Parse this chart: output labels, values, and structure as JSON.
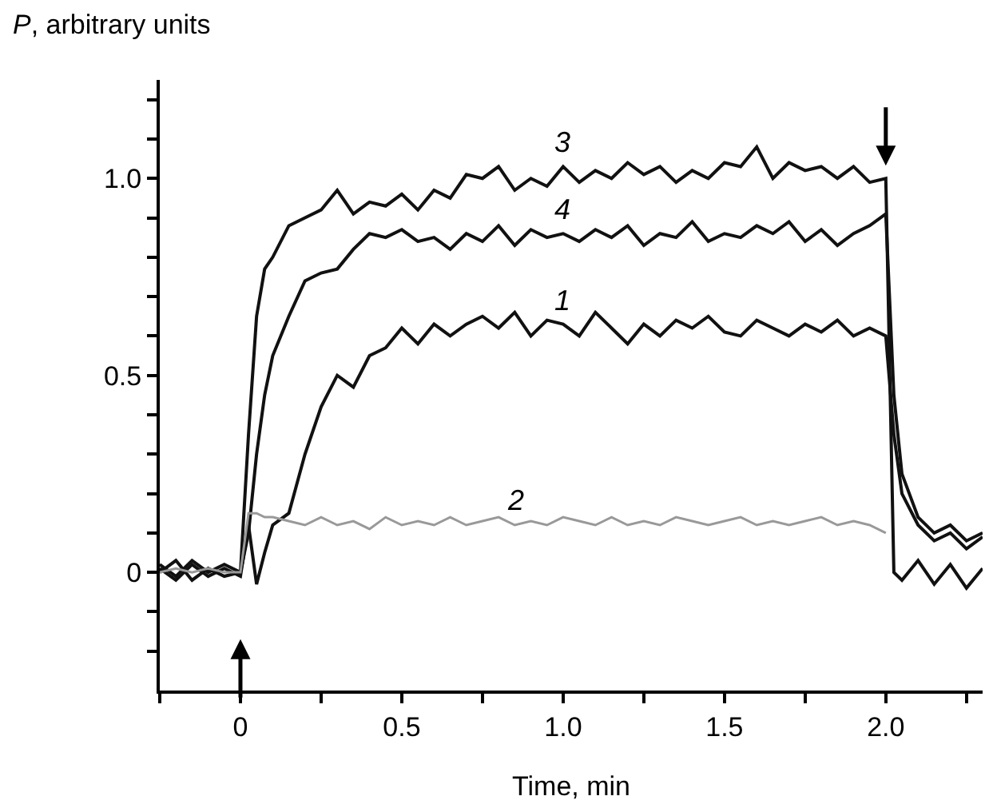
{
  "chart_data": {
    "type": "line",
    "xlabel": "Time, min",
    "ylabel": "P, arbitrary units",
    "x": [
      -0.25,
      -0.2,
      -0.15,
      -0.1,
      -0.05,
      0,
      0.025,
      0.05,
      0.075,
      0.1,
      0.15,
      0.2,
      0.25,
      0.3,
      0.35,
      0.4,
      0.45,
      0.5,
      0.55,
      0.6,
      0.65,
      0.7,
      0.75,
      0.8,
      0.85,
      0.9,
      0.95,
      1.0,
      1.05,
      1.1,
      1.15,
      1.2,
      1.25,
      1.3,
      1.35,
      1.4,
      1.45,
      1.5,
      1.55,
      1.6,
      1.65,
      1.7,
      1.75,
      1.8,
      1.85,
      1.9,
      1.95,
      2.0,
      2.025,
      2.05,
      2.1,
      2.15,
      2.2,
      2.25,
      2.3
    ],
    "series": [
      {
        "name": "3",
        "color": "#111111",
        "values": [
          0.02,
          -0.01,
          0.03,
          0.0,
          0.02,
          0.0,
          0.35,
          0.65,
          0.77,
          0.8,
          0.88,
          0.9,
          0.92,
          0.97,
          0.91,
          0.94,
          0.93,
          0.96,
          0.92,
          0.97,
          0.95,
          1.01,
          1.0,
          1.03,
          0.97,
          1.0,
          0.98,
          1.03,
          0.99,
          1.02,
          1.0,
          1.04,
          1.01,
          1.03,
          0.99,
          1.02,
          1.0,
          1.04,
          1.03,
          1.08,
          1.0,
          1.04,
          1.02,
          1.03,
          1.0,
          1.03,
          0.99,
          1.0,
          0.0,
          -0.02,
          0.03,
          -0.03,
          0.02,
          -0.04,
          0.01
        ]
      },
      {
        "name": "4",
        "color": "#111111",
        "values": [
          0.0,
          0.03,
          -0.02,
          0.01,
          -0.01,
          0.0,
          0.1,
          0.3,
          0.45,
          0.55,
          0.65,
          0.74,
          0.76,
          0.77,
          0.82,
          0.86,
          0.85,
          0.87,
          0.84,
          0.85,
          0.82,
          0.86,
          0.84,
          0.88,
          0.83,
          0.87,
          0.85,
          0.86,
          0.84,
          0.87,
          0.85,
          0.88,
          0.83,
          0.86,
          0.85,
          0.89,
          0.84,
          0.86,
          0.85,
          0.88,
          0.86,
          0.89,
          0.84,
          0.87,
          0.83,
          0.86,
          0.88,
          0.91,
          0.45,
          0.25,
          0.14,
          0.1,
          0.12,
          0.08,
          0.1
        ]
      },
      {
        "name": "1",
        "color": "#111111",
        "values": [
          0.01,
          -0.02,
          0.02,
          -0.01,
          0.01,
          -0.01,
          0.12,
          -0.03,
          0.05,
          0.12,
          0.15,
          0.3,
          0.42,
          0.5,
          0.47,
          0.55,
          0.57,
          0.62,
          0.58,
          0.63,
          0.6,
          0.63,
          0.65,
          0.62,
          0.66,
          0.6,
          0.64,
          0.63,
          0.6,
          0.66,
          0.62,
          0.58,
          0.63,
          0.6,
          0.64,
          0.62,
          0.65,
          0.61,
          0.6,
          0.64,
          0.62,
          0.6,
          0.63,
          0.61,
          0.64,
          0.6,
          0.62,
          0.6,
          0.35,
          0.2,
          0.12,
          0.08,
          0.1,
          0.06,
          0.09
        ]
      },
      {
        "name": "2",
        "color": "#999999",
        "values": [
          0.0,
          0.01,
          0.0,
          0.01,
          0.0,
          0.0,
          0.15,
          0.15,
          0.14,
          0.14,
          0.13,
          0.12,
          0.14,
          0.12,
          0.13,
          0.11,
          0.14,
          0.12,
          0.13,
          0.12,
          0.14,
          0.12,
          0.13,
          0.14,
          0.12,
          0.13,
          0.12,
          0.14,
          0.13,
          0.12,
          0.14,
          0.12,
          0.13,
          0.12,
          0.14,
          0.13,
          0.12,
          0.13,
          0.14,
          0.12,
          0.13,
          0.12,
          0.13,
          0.14,
          0.12,
          0.13,
          0.12,
          0.1,
          null,
          null,
          null,
          null,
          null,
          null,
          null
        ]
      }
    ],
    "xlim": [
      -0.25,
      2.3
    ],
    "ylim": [
      -0.3,
      1.25
    ],
    "xticks": [
      {
        "value": -0.25,
        "label": null
      },
      0,
      {
        "value": 0.25,
        "label": null
      },
      0.5,
      {
        "value": 0.75,
        "label": null
      },
      {
        "value": 1.0,
        "label": "1.0"
      },
      {
        "value": 1.25,
        "label": null
      },
      1.5,
      {
        "value": 1.75,
        "label": null
      },
      {
        "value": 2.0,
        "label": "2.0"
      },
      {
        "value": 2.25,
        "label": null
      }
    ],
    "yticks": [
      {
        "value": -0.2,
        "label": null
      },
      {
        "value": -0.1,
        "label": null
      },
      0,
      {
        "value": 0.1,
        "label": null
      },
      {
        "value": 0.2,
        "label": null
      },
      {
        "value": 0.3,
        "label": null
      },
      {
        "value": 0.4,
        "label": null
      },
      0.5,
      {
        "value": 0.6,
        "label": null
      },
      {
        "value": 0.7,
        "label": null
      },
      {
        "value": 0.8,
        "label": null
      },
      {
        "value": 0.9,
        "label": null
      },
      {
        "value": 1.0,
        "label": "1.0"
      },
      {
        "value": 1.1,
        "label": null
      },
      {
        "value": 1.2,
        "label": null
      }
    ],
    "legend": false,
    "line_style": "solid"
  }
}
